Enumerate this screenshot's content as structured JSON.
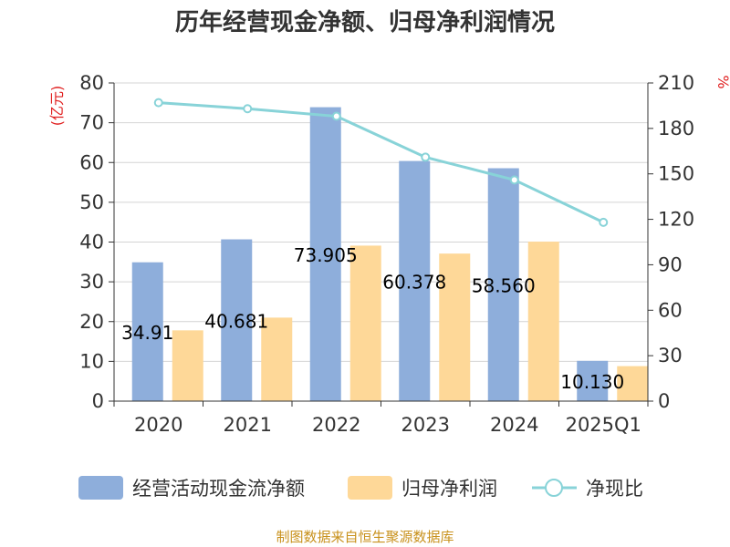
{
  "chart_data": {
    "type": "bar",
    "title": "历年经营现金净额、归母净利润情况",
    "categories": [
      "2020",
      "2021",
      "2022",
      "2023",
      "2024",
      "2025Q1"
    ],
    "series": [
      {
        "name": "经营活动现金流净额",
        "kind": "bar",
        "axis": "left",
        "color": "#8eaedb",
        "values": [
          34.91,
          40.681,
          73.905,
          60.378,
          58.56,
          10.13
        ]
      },
      {
        "name": "归母净利润",
        "kind": "bar",
        "axis": "left",
        "color": "#fed898",
        "values": [
          17.8,
          21.0,
          39.1,
          37.1,
          40.1,
          8.8
        ]
      },
      {
        "name": "净现比",
        "kind": "line",
        "axis": "right",
        "color": "#88d3d8",
        "values": [
          197,
          193,
          188,
          161,
          146,
          118
        ]
      }
    ],
    "data_labels": [
      "34.91",
      "40.681",
      "73.905",
      "60.378",
      "58.560",
      "10.130"
    ],
    "y_left": {
      "unit_label": "(亿元)",
      "min": 0,
      "max": 80,
      "ticks": [
        "0",
        "10",
        "20",
        "30",
        "40",
        "50",
        "60",
        "70",
        "80"
      ]
    },
    "y_right": {
      "unit_label": "%",
      "min": 0,
      "max": 210,
      "ticks": [
        "0",
        "30",
        "60",
        "90",
        "120",
        "150",
        "180",
        "210"
      ]
    },
    "grid": true,
    "legend_position": "bottom"
  },
  "source_text": "制图数据来自恒生聚源数据库"
}
